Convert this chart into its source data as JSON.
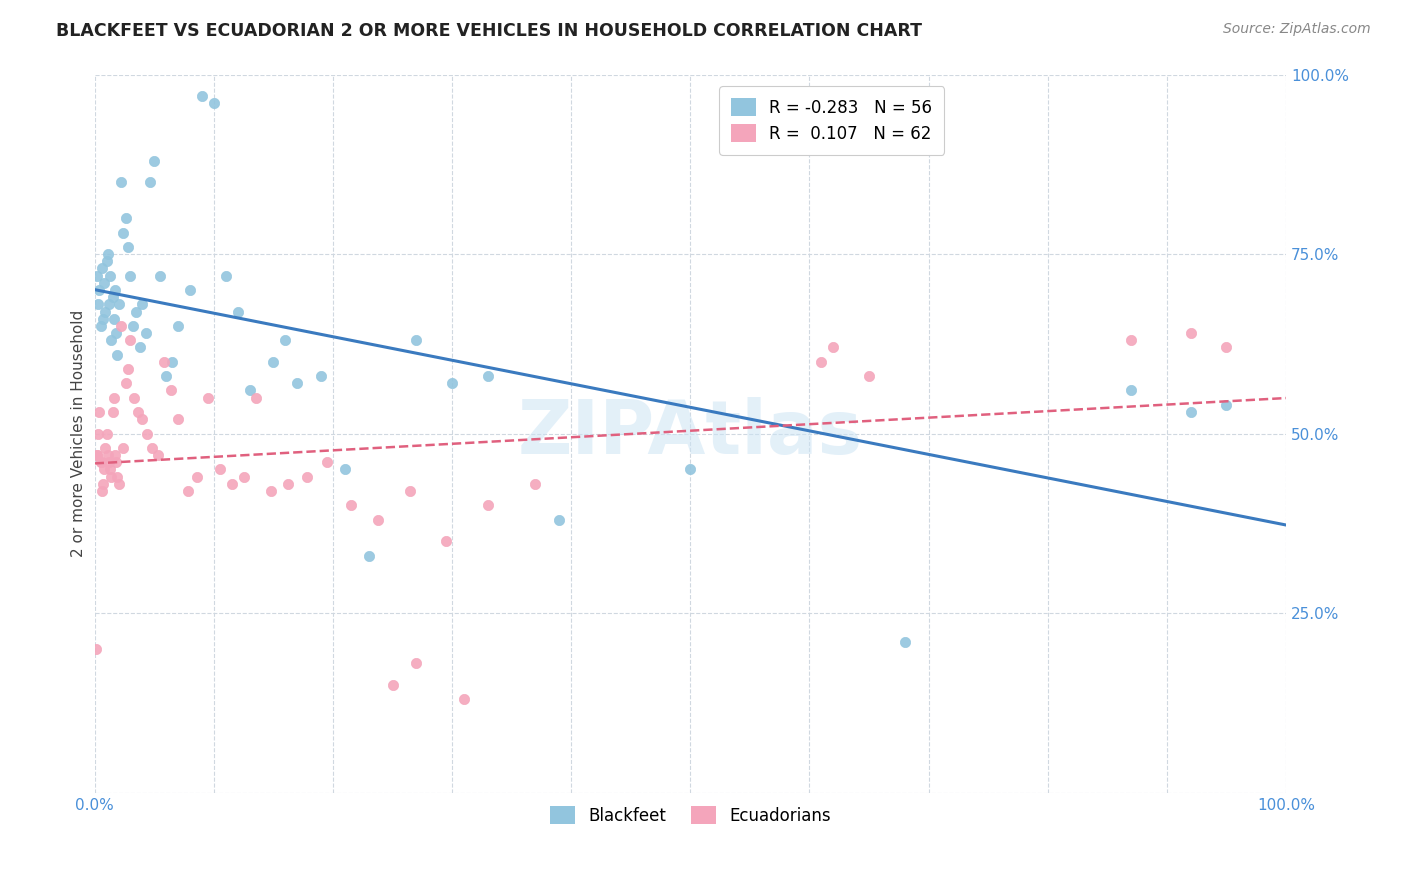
{
  "title": "BLACKFEET VS ECUADORIAN 2 OR MORE VEHICLES IN HOUSEHOLD CORRELATION CHART",
  "source": "Source: ZipAtlas.com",
  "ylabel": "2 or more Vehicles in Household",
  "blackfeet_R": -0.283,
  "blackfeet_N": 56,
  "ecuadorian_R": 0.107,
  "ecuadorian_N": 62,
  "blackfeet_color": "#92c5de",
  "ecuadorian_color": "#f4a5bb",
  "trend_blue": "#3a7abf",
  "trend_pink": "#e0607e",
  "xmin": 0.0,
  "xmax": 1.0,
  "ymin": 0.0,
  "ymax": 1.0,
  "blackfeet_x": [
    0.002,
    0.003,
    0.004,
    0.005,
    0.006,
    0.007,
    0.008,
    0.009,
    0.01,
    0.011,
    0.012,
    0.013,
    0.014,
    0.015,
    0.016,
    0.017,
    0.018,
    0.019,
    0.02,
    0.022,
    0.024,
    0.026,
    0.028,
    0.03,
    0.032,
    0.035,
    0.038,
    0.04,
    0.043,
    0.046,
    0.05,
    0.055,
    0.06,
    0.065,
    0.07,
    0.08,
    0.09,
    0.1,
    0.11,
    0.12,
    0.13,
    0.15,
    0.16,
    0.17,
    0.19,
    0.21,
    0.23,
    0.27,
    0.3,
    0.33,
    0.39,
    0.5,
    0.68,
    0.87,
    0.92,
    0.95
  ],
  "blackfeet_y": [
    0.72,
    0.68,
    0.7,
    0.65,
    0.73,
    0.66,
    0.71,
    0.67,
    0.74,
    0.75,
    0.68,
    0.72,
    0.63,
    0.69,
    0.66,
    0.7,
    0.64,
    0.61,
    0.68,
    0.85,
    0.78,
    0.8,
    0.76,
    0.72,
    0.65,
    0.67,
    0.62,
    0.68,
    0.64,
    0.85,
    0.88,
    0.72,
    0.58,
    0.6,
    0.65,
    0.7,
    0.97,
    0.96,
    0.72,
    0.67,
    0.56,
    0.6,
    0.63,
    0.57,
    0.58,
    0.45,
    0.33,
    0.63,
    0.57,
    0.58,
    0.38,
    0.45,
    0.21,
    0.56,
    0.53,
    0.54
  ],
  "ecuadorian_x": [
    0.001,
    0.002,
    0.003,
    0.004,
    0.005,
    0.006,
    0.007,
    0.008,
    0.009,
    0.01,
    0.011,
    0.012,
    0.013,
    0.014,
    0.015,
    0.016,
    0.017,
    0.018,
    0.019,
    0.02,
    0.022,
    0.024,
    0.026,
    0.028,
    0.03,
    0.033,
    0.036,
    0.04,
    0.044,
    0.048,
    0.053,
    0.058,
    0.064,
    0.07,
    0.078,
    0.086,
    0.095,
    0.105,
    0.115,
    0.125,
    0.135,
    0.148,
    0.162,
    0.178,
    0.195,
    0.215,
    0.238,
    0.265,
    0.295,
    0.33,
    0.37,
    0.25,
    0.27,
    0.31,
    0.61,
    0.62,
    0.65,
    0.87,
    0.92,
    0.95,
    0.002,
    0.005
  ],
  "ecuadorian_y": [
    0.2,
    0.47,
    0.5,
    0.53,
    0.46,
    0.42,
    0.43,
    0.45,
    0.48,
    0.5,
    0.47,
    0.46,
    0.45,
    0.44,
    0.53,
    0.55,
    0.47,
    0.46,
    0.44,
    0.43,
    0.65,
    0.48,
    0.57,
    0.59,
    0.63,
    0.55,
    0.53,
    0.52,
    0.5,
    0.48,
    0.47,
    0.6,
    0.56,
    0.52,
    0.42,
    0.44,
    0.55,
    0.45,
    0.43,
    0.44,
    0.55,
    0.42,
    0.43,
    0.44,
    0.46,
    0.4,
    0.38,
    0.42,
    0.35,
    0.4,
    0.43,
    0.15,
    0.18,
    0.13,
    0.6,
    0.62,
    0.58,
    0.63,
    0.64,
    0.62,
    0.47,
    0.46
  ],
  "x_ticks": [
    0.0,
    1.0
  ],
  "x_ticklabels": [
    "0.0%",
    "100.0%"
  ],
  "y_ticks": [
    0.0,
    0.25,
    0.5,
    0.75,
    1.0
  ],
  "y_ticklabels": [
    "",
    "25.0%",
    "50.0%",
    "75.0%",
    "100.0%"
  ]
}
